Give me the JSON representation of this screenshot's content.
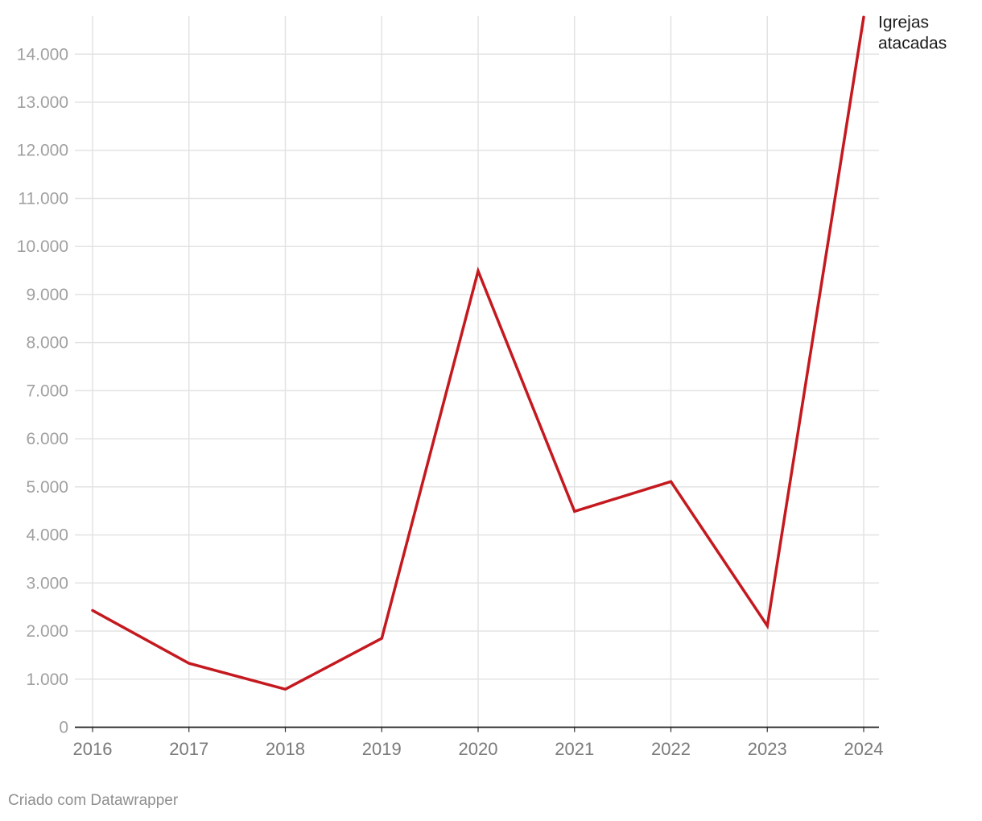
{
  "chart_data": {
    "type": "line",
    "x": [
      "2016",
      "2017",
      "2018",
      "2019",
      "2020",
      "2021",
      "2022",
      "2023",
      "2024"
    ],
    "series": [
      {
        "name": "Igrejas atacadas",
        "label_lines": [
          "Igrejas",
          "atacadas"
        ],
        "color": "#c4191f",
        "values": [
          2430,
          1330,
          790,
          1850,
          9490,
          4490,
          5110,
          2110,
          14770
        ]
      }
    ],
    "ylim": [
      0,
      14770
    ],
    "yticks": [
      0,
      1000,
      2000,
      3000,
      4000,
      5000,
      6000,
      7000,
      8000,
      9000,
      10000,
      11000,
      12000,
      13000,
      14000
    ],
    "ytick_labels": [
      "0",
      "1.000",
      "2.000",
      "3.000",
      "4.000",
      "5.000",
      "6.000",
      "7.000",
      "8.000",
      "9.000",
      "10.000",
      "11.000",
      "12.000",
      "13.000",
      "14.000"
    ],
    "grid": true,
    "title": "",
    "xlabel": "",
    "ylabel": ""
  },
  "footer": {
    "credit": "Criado com Datawrapper"
  }
}
